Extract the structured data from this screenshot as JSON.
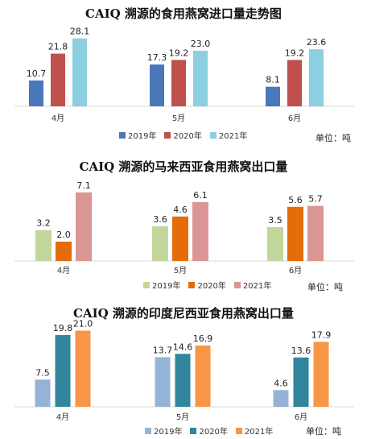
{
  "chart_data": [
    {
      "type": "bar",
      "title": "CAIQ 溯源的食用燕窝进口量走势图",
      "unit_label": "单位：吨",
      "categories": [
        "4月",
        "5月",
        "6月"
      ],
      "series": [
        {
          "name": "2019年",
          "color": "#4a78b8",
          "values": [
            10.7,
            17.3,
            8.1
          ]
        },
        {
          "name": "2020年",
          "color": "#c0504d",
          "values": [
            21.8,
            19.2,
            19.2
          ]
        },
        {
          "name": "2021年",
          "color": "#8ccfe0",
          "values": [
            28.1,
            23.0,
            23.6
          ]
        }
      ],
      "ylim": [
        0,
        30
      ],
      "grid": false,
      "legend": "bottom"
    },
    {
      "type": "bar",
      "title": "CAIQ 溯源的马来西亚食用燕窝出口量",
      "unit_label": "单位：吨",
      "categories": [
        "4月",
        "5月",
        "6月"
      ],
      "series": [
        {
          "name": "2019年",
          "color": "#c3d69b",
          "values": [
            3.2,
            3.6,
            3.5
          ]
        },
        {
          "name": "2020年",
          "color": "#e46c0a",
          "values": [
            2.0,
            4.6,
            5.6
          ]
        },
        {
          "name": "2021年",
          "color": "#d99694",
          "values": [
            7.1,
            6.1,
            5.7
          ]
        }
      ],
      "ylim": [
        0,
        8
      ],
      "grid": false,
      "legend": "bottom"
    },
    {
      "type": "bar",
      "title": "CAIQ 溯源的印度尼西亚食用燕窝出口量",
      "unit_label": "单位：吨",
      "categories": [
        "4月",
        "5月",
        "6月"
      ],
      "series": [
        {
          "name": "2019年",
          "color": "#95b3d7",
          "values": [
            7.5,
            13.7,
            4.6
          ]
        },
        {
          "name": "2020年",
          "color": "#31859c",
          "values": [
            19.8,
            14.6,
            13.6
          ]
        },
        {
          "name": "2021年",
          "color": "#f79646",
          "values": [
            21.0,
            16.9,
            17.9
          ]
        }
      ],
      "ylim": [
        0,
        24
      ],
      "grid": false,
      "legend": "bottom"
    }
  ]
}
